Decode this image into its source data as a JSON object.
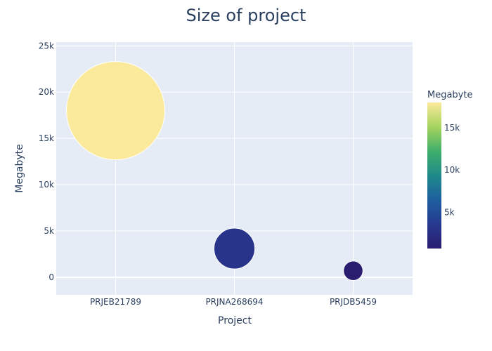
{
  "chart_data": {
    "type": "scatter",
    "title": "Size of project",
    "xlabel": "Project",
    "ylabel": "Megabyte",
    "categories": [
      "PRJEB21789",
      "PRJNA268694",
      "PRJDB5459"
    ],
    "values": [
      18000,
      3100,
      700
    ],
    "ylim": [
      -1900,
      25400
    ],
    "yticks": [
      0,
      5000,
      10000,
      15000,
      20000,
      25000
    ],
    "ytick_labels": [
      "0",
      "5k",
      "10k",
      "15k",
      "20k",
      "25k"
    ],
    "marker_size_encodes": "Megabyte",
    "colorbar": {
      "title": "Megabyte",
      "range": [
        700,
        18000
      ],
      "ticks": [
        5000,
        10000,
        15000
      ],
      "tick_labels": [
        "5k",
        "10k",
        "15k"
      ],
      "colorscale": [
        "#2a1d70",
        "#26398f",
        "#1e5fa0",
        "#1f8a8a",
        "#3fae6a",
        "#a6d45e",
        "#fcea9c"
      ]
    },
    "plot_background": "#e5ecf6",
    "grid": true
  }
}
